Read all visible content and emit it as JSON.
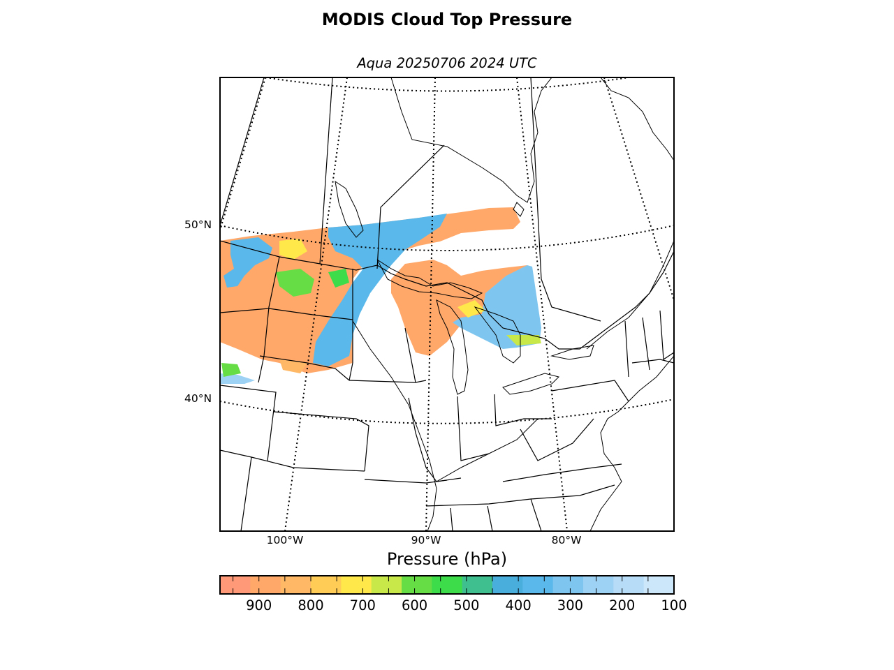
{
  "figure": {
    "title": "MODIS Cloud Top Pressure",
    "subtitle": "Aqua 20250706 2024 UTC"
  },
  "map": {
    "projection": "lambert-conformal",
    "latitude_labels": [
      "50°N",
      "40°N"
    ],
    "longitude_labels": [
      "100°W",
      "90°W",
      "80°W"
    ],
    "graticule_style": "dotted",
    "features": [
      "coastlines",
      "country-borders",
      "state-borders",
      "great-lakes"
    ]
  },
  "colorbar": {
    "label": "Pressure (hPa)",
    "orientation": "horizontal",
    "range": [
      975,
      100
    ],
    "ticks": [
      "900",
      "800",
      "700",
      "600",
      "500",
      "400",
      "300",
      "200",
      "100"
    ],
    "colors": [
      "#ff9977",
      "#ffa86a",
      "#ffb866",
      "#ffcc55",
      "#ffe84a",
      "#c8e84a",
      "#66dd44",
      "#3ddc4a",
      "#3fbf8f",
      "#4aaedd",
      "#5ab8ea",
      "#7ec6f0",
      "#9ed2f4",
      "#b6dcf8",
      "#cce6fa"
    ]
  },
  "legend_colors": {
    "low_clouds": "#ff9977",
    "mid_clouds": "#ffe84a",
    "green_band": "#3ddc4a",
    "high_clouds": "#5ab8ea",
    "very_high": "#cce6fa"
  }
}
